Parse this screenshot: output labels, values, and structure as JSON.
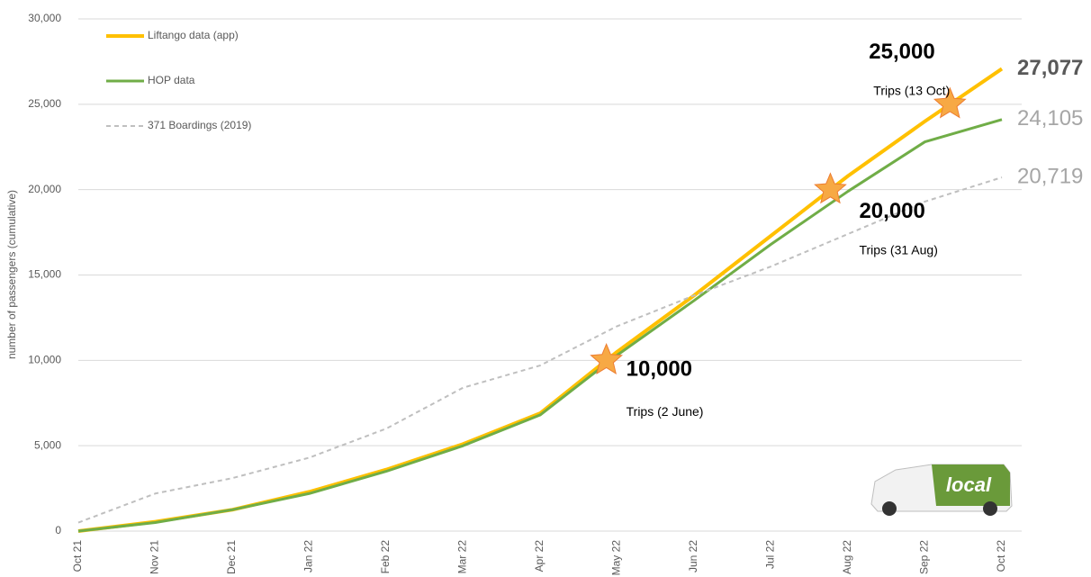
{
  "chart_data": {
    "type": "line",
    "y_label": "number of passengers (cumulative)",
    "categories": [
      "Oct 21",
      "Nov 21",
      "Dec 21",
      "Jan 22",
      "Feb 22",
      "Mar 22",
      "Apr 22",
      "May 22",
      "Jun 22",
      "Jul 22",
      "Aug 22",
      "Sep 22",
      "Oct 22"
    ],
    "series": [
      {
        "name": "Liftango data (app)",
        "color": "#ffc000",
        "width": 4,
        "dashed": false,
        "values": [
          0,
          550,
          1250,
          2300,
          3600,
          5100,
          6900,
          10500,
          13800,
          17300,
          20800,
          24000,
          27077
        ],
        "value_labels": [
          null,
          null,
          null,
          null,
          null,
          null,
          null,
          null,
          null,
          null,
          null,
          null,
          "27,077"
        ]
      },
      {
        "name": "HOP data",
        "color": "#70ad47",
        "width": 3,
        "dashed": false,
        "values": [
          0,
          500,
          1250,
          2200,
          3500,
          5000,
          6800,
          10300,
          13500,
          16800,
          19900,
          22800,
          24105
        ],
        "value_labels": [
          null,
          null,
          null,
          null,
          null,
          null,
          null,
          null,
          null,
          null,
          null,
          null,
          "24,105"
        ]
      },
      {
        "name": "371 Boardings (2019)",
        "color": "#bfbfbf",
        "width": 2,
        "dashed": true,
        "values": [
          500,
          2200,
          3100,
          4300,
          6000,
          8400,
          9700,
          12000,
          13800,
          15500,
          17400,
          19300,
          20719
        ],
        "value_labels": [
          null,
          null,
          null,
          null,
          null,
          null,
          null,
          null,
          null,
          null,
          null,
          null,
          "20,719"
        ]
      }
    ],
    "milestones": [
      {
        "value": 10000,
        "label": "10,000",
        "note": "Trips (2 June)"
      },
      {
        "value": 20000,
        "label": "20,000",
        "note": "Trips (31 Aug)"
      },
      {
        "value": 25000,
        "label": "25,000",
        "note": "Trips (13 Oct)"
      }
    ],
    "ylim": [
      0,
      30000
    ],
    "yticks": [
      0,
      {
        "value": 5000,
        "label": "5,000"
      },
      {
        "value": 10000,
        "label": "10,000"
      },
      {
        "value": 15000,
        "label": "15,000"
      },
      {
        "value": 20000,
        "label": "20,000"
      },
      {
        "value": 25000,
        "label": "25,000"
      },
      {
        "value": 30000,
        "label": "30,000"
      }
    ],
    "grid": true,
    "legend": "top-left"
  }
}
